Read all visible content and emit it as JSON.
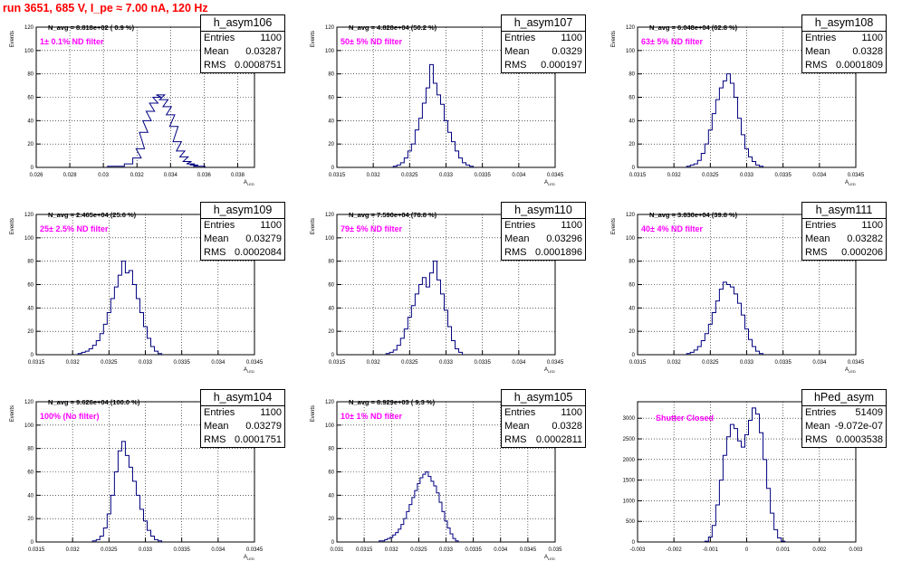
{
  "header": {
    "text": "run 3651,   685 V, I_pe ≈ 7.00 nA, 120 Hz",
    "color": "#ff0000"
  },
  "colors": {
    "line": "#000080",
    "filter_label": "#ff00ff",
    "axis": "#000000",
    "grid": "#000000"
  },
  "stat_labels": {
    "entries": "Entries",
    "mean": "Mean",
    "rms": "RMS"
  },
  "pads": [
    {
      "name": "h_asym106",
      "nlabel": "N_avg = 8.818e+02 ( 0.9 %)",
      "filter": "1± 0.1% ND filter",
      "stats": {
        "entries": "1100",
        "mean": "0.03287",
        "rms": "0.0008751"
      },
      "xtitle": "A",
      "xtitle_sub": "LED",
      "ytitle": "Events",
      "xticks": [
        "0.026",
        "0.028",
        "0.03",
        "0.032",
        "0.034",
        "0.036",
        "0.038"
      ],
      "yticks": [
        "0",
        "20",
        "40",
        "60",
        "80",
        "100",
        "120"
      ]
    },
    {
      "name": "h_asym107",
      "nlabel": "N_avg = 4.828e+04 (50.2 %)",
      "filter": "50± 5% ND filter",
      "stats": {
        "entries": "1100",
        "mean": "0.0329",
        "rms": "0.000197"
      },
      "xtitle": "A",
      "xtitle_sub": "LED",
      "ytitle": "Events",
      "xticks": [
        "0.0315",
        "0.032",
        "0.0325",
        "0.033",
        "0.0335",
        "0.034",
        "0.0345"
      ],
      "yticks": [
        "0",
        "20",
        "40",
        "60",
        "80",
        "100",
        "120"
      ]
    },
    {
      "name": "h_asym108",
      "nlabel": "N_avg = 6.048e+04 (62.8 %)",
      "filter": "63± 5% ND filter",
      "stats": {
        "entries": "1100",
        "mean": "0.0328",
        "rms": "0.0001809"
      },
      "xtitle": "A",
      "xtitle_sub": "LED",
      "ytitle": "Events",
      "xticks": [
        "0.0315",
        "0.032",
        "0.0325",
        "0.033",
        "0.0335",
        "0.034",
        "0.0345"
      ],
      "yticks": [
        "0",
        "20",
        "40",
        "60",
        "80",
        "100",
        "120"
      ]
    },
    {
      "name": "h_asym109",
      "nlabel": "N_avg = 2.465e+04 (25.6 %)",
      "filter": "25± 2.5% ND filter",
      "stats": {
        "entries": "1100",
        "mean": "0.03279",
        "rms": "0.0002084"
      },
      "xtitle": "A",
      "xtitle_sub": "LED",
      "ytitle": "Events",
      "xticks": [
        "0.0315",
        "0.032",
        "0.0325",
        "0.033",
        "0.0335",
        "0.034",
        "0.0345"
      ],
      "yticks": [
        "0",
        "20",
        "40",
        "60",
        "80",
        "100",
        "120"
      ]
    },
    {
      "name": "h_asym110",
      "nlabel": "N_avg = 7.590e+04 (78.8 %)",
      "filter": "79± 5% ND filter",
      "stats": {
        "entries": "1100",
        "mean": "0.03296",
        "rms": "0.0001896"
      },
      "xtitle": "A",
      "xtitle_sub": "LED",
      "ytitle": "Events",
      "xticks": [
        "0.0315",
        "0.032",
        "0.0325",
        "0.033",
        "0.0335",
        "0.034",
        "0.0345"
      ],
      "yticks": [
        "0",
        "20",
        "40",
        "60",
        "80",
        "100",
        "120"
      ]
    },
    {
      "name": "h_asym111",
      "nlabel": "N_avg = 3.830e+04 (39.8 %)",
      "filter": "40± 4% ND filter",
      "stats": {
        "entries": "1100",
        "mean": "0.03282",
        "rms": "0.000206"
      },
      "xtitle": "A",
      "xtitle_sub": "LED",
      "ytitle": "Events",
      "xticks": [
        "0.0315",
        "0.032",
        "0.0325",
        "0.033",
        "0.0335",
        "0.034",
        "0.0345"
      ],
      "yticks": [
        "0",
        "20",
        "40",
        "60",
        "80",
        "100",
        "120"
      ]
    },
    {
      "name": "h_asym104",
      "nlabel": "N_avg = 9.626e+04 (100.0 %)",
      "filter": "100% (No filter)",
      "stats": {
        "entries": "1100",
        "mean": "0.03279",
        "rms": "0.0001751"
      },
      "xtitle": "A",
      "xtitle_sub": "LED",
      "ytitle": "Events",
      "xticks": [
        "0.0315",
        "0.032",
        "0.0325",
        "0.033",
        "0.0335",
        "0.034",
        "0.0345"
      ],
      "yticks": [
        "0",
        "20",
        "40",
        "60",
        "80",
        "100",
        "120"
      ]
    },
    {
      "name": "h_asym105",
      "nlabel": "N_avg = 8.929e+03 ( 9.3 %)",
      "filter": "10± 1% ND filter",
      "stats": {
        "entries": "1100",
        "mean": "0.0328",
        "rms": "0.0002811"
      },
      "xtitle": "A",
      "xtitle_sub": "LED",
      "ytitle": "Events",
      "xticks": [
        "0.031",
        "0.0315",
        "0.032",
        "0.0325",
        "0.033",
        "0.0335",
        "0.034",
        "0.0345",
        "0.035"
      ],
      "yticks": [
        "0",
        "20",
        "40",
        "60",
        "80",
        "100",
        "120"
      ]
    },
    {
      "name": "hPed_asym",
      "nlabel": "",
      "filter": "Shutter Closed",
      "stats": {
        "entries": "51409",
        "mean": "-9.072e-07",
        "rms": "0.0003538"
      },
      "xtitle": "",
      "xtitle_sub": "",
      "ytitle": "",
      "xticks": [
        "-0.003",
        "-0.002",
        "-0.001",
        "0",
        "0.001",
        "0.002",
        "0.003"
      ],
      "yticks": [
        "0",
        "500",
        "1000",
        "1500",
        "2000",
        "2500",
        "3000"
      ]
    }
  ],
  "chart_data": [
    {
      "type": "histogram",
      "name": "h_asym106",
      "xlim": [
        0.026,
        0.039
      ],
      "ylim": [
        0,
        120
      ],
      "x": [
        0.0305,
        0.031,
        0.0315,
        0.032,
        0.0322,
        0.0324,
        0.0326,
        0.0328,
        0.033,
        0.0332,
        0.0334,
        0.0336,
        0.0338,
        0.034,
        0.0342,
        0.0344,
        0.0346,
        0.0348,
        0.035,
        0.0352,
        0.0354,
        0.0356,
        0.0358
      ],
      "values": [
        1,
        1,
        3,
        8,
        16,
        30,
        40,
        48,
        55,
        60,
        62,
        58,
        52,
        45,
        35,
        22,
        14,
        9,
        5,
        3,
        2,
        1,
        1
      ]
    },
    {
      "type": "histogram",
      "name": "h_asym107",
      "xlim": [
        0.0315,
        0.0345
      ],
      "ylim": [
        0,
        120
      ],
      "x": [
        0.0323,
        0.03235,
        0.0324,
        0.03245,
        0.0325,
        0.03255,
        0.0326,
        0.03265,
        0.0327,
        0.03275,
        0.0328,
        0.03285,
        0.0329,
        0.03295,
        0.033,
        0.03305,
        0.0331,
        0.03315,
        0.0332,
        0.03325,
        0.0333,
        0.03335
      ],
      "values": [
        1,
        2,
        4,
        8,
        14,
        20,
        32,
        42,
        55,
        68,
        88,
        72,
        62,
        54,
        40,
        30,
        22,
        14,
        8,
        4,
        2,
        1
      ]
    },
    {
      "type": "histogram",
      "name": "h_asym108",
      "xlim": [
        0.0315,
        0.0345
      ],
      "ylim": [
        0,
        120
      ],
      "x": [
        0.0322,
        0.03225,
        0.0323,
        0.03235,
        0.0324,
        0.03245,
        0.0325,
        0.03255,
        0.0326,
        0.03265,
        0.0327,
        0.03275,
        0.0328,
        0.03285,
        0.0329,
        0.03295,
        0.033,
        0.03305,
        0.0331,
        0.03315,
        0.0332
      ],
      "values": [
        1,
        2,
        3,
        6,
        12,
        20,
        32,
        46,
        58,
        68,
        74,
        80,
        72,
        60,
        42,
        28,
        16,
        9,
        5,
        2,
        1
      ]
    },
    {
      "type": "histogram",
      "name": "h_asym109",
      "xlim": [
        0.0315,
        0.0345
      ],
      "ylim": [
        0,
        120
      ],
      "x": [
        0.0321,
        0.03215,
        0.0322,
        0.03225,
        0.0323,
        0.03235,
        0.0324,
        0.03245,
        0.0325,
        0.03255,
        0.0326,
        0.03265,
        0.0327,
        0.03275,
        0.0328,
        0.03285,
        0.0329,
        0.03295,
        0.033,
        0.03305,
        0.0331,
        0.03315,
        0.0332
      ],
      "values": [
        1,
        2,
        3,
        5,
        8,
        12,
        18,
        26,
        36,
        48,
        58,
        68,
        80,
        70,
        72,
        60,
        48,
        36,
        24,
        14,
        7,
        3,
        1
      ]
    },
    {
      "type": "histogram",
      "name": "h_asym110",
      "xlim": [
        0.0315,
        0.0345
      ],
      "ylim": [
        0,
        120
      ],
      "x": [
        0.0322,
        0.03225,
        0.0323,
        0.03235,
        0.0324,
        0.03245,
        0.0325,
        0.03255,
        0.0326,
        0.03265,
        0.0327,
        0.03275,
        0.0328,
        0.03285,
        0.0329,
        0.03295,
        0.033,
        0.03305,
        0.0331,
        0.03315,
        0.0332
      ],
      "values": [
        1,
        2,
        4,
        8,
        14,
        22,
        32,
        42,
        52,
        60,
        66,
        58,
        70,
        80,
        64,
        52,
        38,
        24,
        12,
        5,
        2
      ]
    },
    {
      "type": "histogram",
      "name": "h_asym111",
      "xlim": [
        0.0315,
        0.0345
      ],
      "ylim": [
        0,
        120
      ],
      "x": [
        0.0322,
        0.03225,
        0.0323,
        0.03235,
        0.0324,
        0.03245,
        0.0325,
        0.03255,
        0.0326,
        0.03265,
        0.0327,
        0.03275,
        0.0328,
        0.03285,
        0.0329,
        0.03295,
        0.033,
        0.03305,
        0.0331,
        0.03315,
        0.0332
      ],
      "values": [
        1,
        2,
        4,
        7,
        12,
        18,
        26,
        36,
        46,
        56,
        62,
        60,
        58,
        52,
        44,
        34,
        22,
        13,
        7,
        3,
        1
      ]
    },
    {
      "type": "histogram",
      "name": "h_asym104",
      "xlim": [
        0.0315,
        0.0345
      ],
      "ylim": [
        0,
        120
      ],
      "x": [
        0.0323,
        0.03235,
        0.0324,
        0.03245,
        0.0325,
        0.03255,
        0.0326,
        0.03265,
        0.0327,
        0.03275,
        0.0328,
        0.03285,
        0.0329,
        0.03295,
        0.033,
        0.03305,
        0.0331,
        0.03315,
        0.0332
      ],
      "values": [
        1,
        2,
        5,
        12,
        24,
        40,
        60,
        78,
        86,
        74,
        64,
        52,
        40,
        28,
        18,
        10,
        5,
        2,
        1
      ]
    },
    {
      "type": "histogram",
      "name": "h_asym105",
      "xlim": [
        0.031,
        0.035
      ],
      "ylim": [
        0,
        120
      ],
      "x": [
        0.0318,
        0.03185,
        0.0319,
        0.03195,
        0.032,
        0.03205,
        0.0321,
        0.03215,
        0.0322,
        0.03225,
        0.0323,
        0.03235,
        0.0324,
        0.03245,
        0.0325,
        0.03255,
        0.0326,
        0.03265,
        0.0327,
        0.03275,
        0.0328,
        0.03285,
        0.0329,
        0.03295,
        0.033,
        0.03305,
        0.0331,
        0.03315,
        0.0332
      ],
      "values": [
        1,
        1,
        2,
        3,
        4,
        6,
        8,
        11,
        15,
        20,
        26,
        32,
        38,
        44,
        50,
        55,
        58,
        60,
        56,
        52,
        48,
        42,
        34,
        26,
        18,
        12,
        7,
        3,
        1
      ]
    },
    {
      "type": "histogram",
      "name": "hPed_asym",
      "xlim": [
        -0.003,
        0.003
      ],
      "ylim": [
        0,
        3400
      ],
      "x": [
        -0.0011,
        -0.001,
        -0.0009,
        -0.0008,
        -0.0007,
        -0.0006,
        -0.0005,
        -0.0004,
        -0.0003,
        -0.0002,
        -0.0001,
        0.0,
        0.0001,
        0.0002,
        0.0003,
        0.0004,
        0.0005,
        0.0006,
        0.0007,
        0.0008,
        0.0009,
        0.001
      ],
      "values": [
        20,
        120,
        400,
        900,
        1500,
        2100,
        2550,
        2850,
        2750,
        2450,
        2300,
        2600,
        2950,
        3250,
        3100,
        2650,
        2000,
        1300,
        700,
        300,
        100,
        20
      ]
    }
  ]
}
